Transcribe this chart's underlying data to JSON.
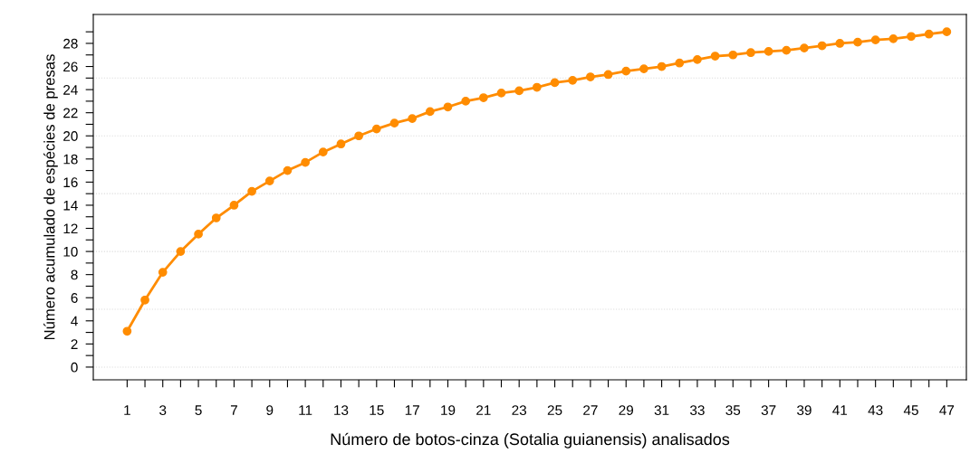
{
  "chart_data": {
    "type": "line",
    "xlabel": "Número de botos-cinza (Sotalia guianensis) analisados",
    "ylabel": "Número acumulado de espécies de presas",
    "x": [
      1,
      2,
      3,
      4,
      5,
      6,
      7,
      8,
      9,
      10,
      11,
      12,
      13,
      14,
      15,
      16,
      17,
      18,
      19,
      20,
      21,
      22,
      23,
      24,
      25,
      26,
      27,
      28,
      29,
      30,
      31,
      32,
      33,
      34,
      35,
      36,
      37,
      38,
      39,
      40,
      41,
      42,
      43,
      44,
      45,
      46,
      47
    ],
    "series": [
      {
        "color": "#ff8c00",
        "values": [
          3.1,
          5.8,
          8.2,
          10.0,
          11.5,
          12.9,
          14.0,
          15.2,
          16.1,
          17.0,
          17.7,
          18.6,
          19.3,
          20.0,
          20.6,
          21.1,
          21.5,
          22.1,
          22.5,
          23.0,
          23.3,
          23.7,
          23.9,
          24.2,
          24.6,
          24.8,
          25.1,
          25.3,
          25.6,
          25.8,
          26.0,
          26.3,
          26.6,
          26.9,
          27.0,
          27.2,
          27.3,
          27.4,
          27.6,
          27.8,
          28.0,
          28.1,
          28.3,
          28.4,
          28.6,
          28.8,
          29.0
        ]
      }
    ],
    "marker": "circle",
    "line_style": "solid",
    "xlim": [
      -0.9,
      48.1
    ],
    "ylim": [
      -1.1,
      30.5
    ],
    "xticks": [
      1,
      {
        "value": 2,
        "label": null
      },
      3,
      {
        "value": 4,
        "label": null
      },
      5,
      {
        "value": 6,
        "label": null
      },
      7,
      {
        "value": 8,
        "label": null
      },
      9,
      {
        "value": 10,
        "label": null
      },
      11,
      {
        "value": 12,
        "label": null
      },
      13,
      {
        "value": 14,
        "label": null
      },
      15,
      {
        "value": 16,
        "label": null
      },
      17,
      {
        "value": 18,
        "label": null
      },
      19,
      {
        "value": 20,
        "label": null
      },
      21,
      {
        "value": 22,
        "label": null
      },
      23,
      {
        "value": 24,
        "label": null
      },
      25,
      {
        "value": 26,
        "label": null
      },
      27,
      {
        "value": 28,
        "label": null
      },
      29,
      {
        "value": 30,
        "label": null
      },
      31,
      {
        "value": 32,
        "label": null
      },
      33,
      {
        "value": 34,
        "label": null
      },
      35,
      {
        "value": 36,
        "label": null
      },
      37,
      {
        "value": 38,
        "label": null
      },
      39,
      {
        "value": 40,
        "label": null
      },
      41,
      {
        "value": 42,
        "label": null
      },
      43,
      {
        "value": 44,
        "label": null
      },
      45,
      {
        "value": 46,
        "label": null
      },
      47
    ],
    "yticks": [
      0,
      {
        "value": 1,
        "label": null
      },
      2,
      {
        "value": 3,
        "label": null
      },
      4,
      {
        "value": 5,
        "label": null
      },
      6,
      {
        "value": 7,
        "label": null
      },
      8,
      {
        "value": 9,
        "label": null
      },
      10,
      {
        "value": 11,
        "label": null
      },
      12,
      {
        "value": 13,
        "label": null
      },
      14,
      {
        "value": 15,
        "label": null
      },
      16,
      {
        "value": 17,
        "label": null
      },
      18,
      {
        "value": 19,
        "label": null
      },
      20,
      {
        "value": 21,
        "label": null
      },
      22,
      {
        "value": 23,
        "label": null
      },
      24,
      {
        "value": 25,
        "label": null
      },
      26,
      {
        "value": 27,
        "label": null
      },
      28,
      {
        "value": 29,
        "label": null
      }
    ],
    "ref_lines": [
      {
        "axis": "y",
        "value": 0,
        "color": "#d9d9d9",
        "line_style": "dotted"
      },
      {
        "axis": "y",
        "value": 5,
        "color": "#d9d9d9",
        "line_style": "dotted"
      },
      {
        "axis": "y",
        "value": 10,
        "color": "#d9d9d9",
        "line_style": "dotted"
      },
      {
        "axis": "y",
        "value": 15,
        "color": "#d9d9d9",
        "line_style": "dotted"
      },
      {
        "axis": "y",
        "value": 20,
        "color": "#d9d9d9",
        "line_style": "dotted"
      },
      {
        "axis": "y",
        "value": 25,
        "color": "#d9d9d9",
        "line_style": "dotted"
      }
    ],
    "grid": false,
    "legend": false
  }
}
